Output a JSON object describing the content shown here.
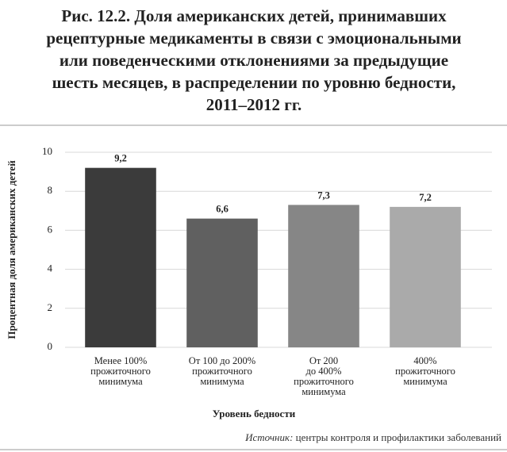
{
  "chart_data": {
    "type": "bar",
    "title": "Рис. 12.2. Доля американских детей, принимавших\nрецептурные медикаменты в связи с эмоциональными\nили поведенческими отклонениями за предыдущие\nшесть месяцев, в распределении по уровню бедности,\n2011–2012 гг.",
    "y_label": "Процентная доля американских детей",
    "x_label": "Уровень бедности",
    "source": {
      "label": "Источник:",
      "text": "центры контроля и профилактики заболеваний"
    },
    "categories": [
      "Менее 100%\nпрожиточного\nминимума",
      "От 100 до 200%\nпрожиточного\nминимума",
      "От 200\nдо 400%\nпрожиточного\nминимума",
      "400%\nпрожиточного\nминимума"
    ],
    "values": [
      9.2,
      6.6,
      7.3,
      7.2
    ],
    "value_labels": [
      "9,2",
      "6,6",
      "7,3",
      "7,2"
    ],
    "colors": [
      "#3b3b3b",
      "#606060",
      "#868686",
      "#aaaaaa"
    ],
    "ylim": [
      0,
      10
    ],
    "yticks": [
      0,
      2,
      4,
      6,
      8,
      10
    ],
    "grid": true
  }
}
